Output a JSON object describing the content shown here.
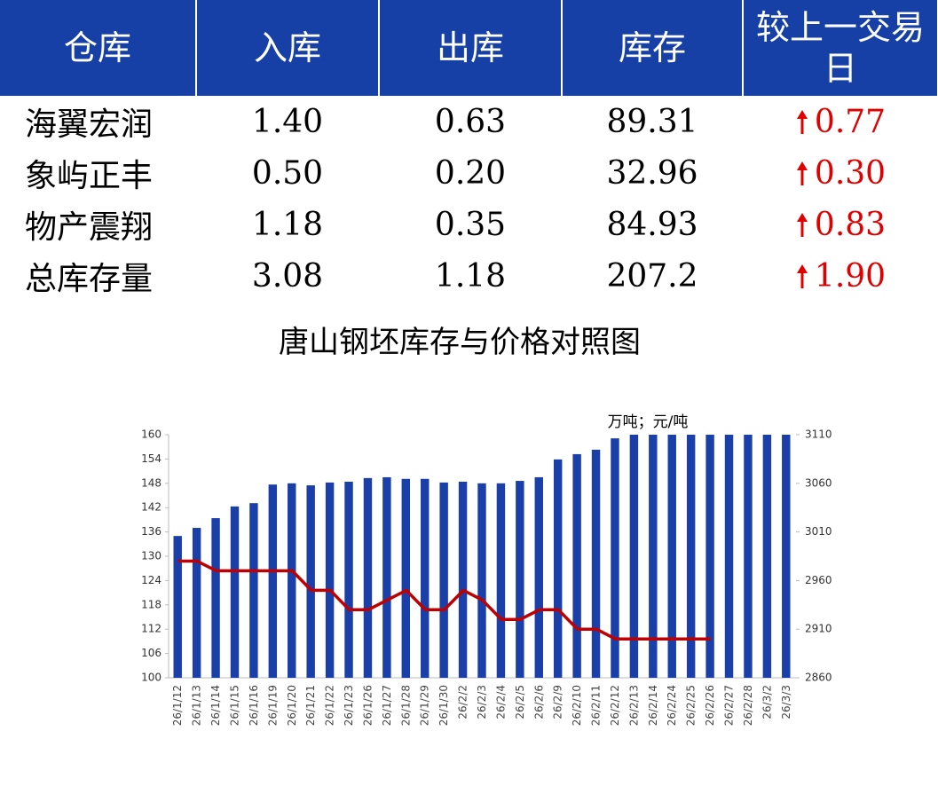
{
  "table": {
    "headers": [
      "仓库",
      "入库",
      "出库",
      "库存",
      "较上一交易日"
    ],
    "rows": [
      [
        "海翼宏润",
        "1.40",
        "0.63",
        "89.31",
        "0.77"
      ],
      [
        "象屿正丰",
        "0.50",
        "0.20",
        "32.96",
        "0.30"
      ],
      [
        "物产震翔",
        "1.18",
        "0.35",
        "84.93",
        "0.83"
      ],
      [
        "总库存量",
        "3.08",
        "1.18",
        "207.2",
        "1.90"
      ]
    ]
  },
  "chart_data": {
    "type": "bar",
    "title": "唐山钢坯库存与价格对照图",
    "unit_label": "万吨；元/吨",
    "categories": [
      "26/1/12",
      "26/1/13",
      "26/1/14",
      "26/1/15",
      "26/1/16",
      "26/1/19",
      "26/1/20",
      "26/1/21",
      "26/1/22",
      "26/1/23",
      "26/1/26",
      "26/1/27",
      "26/1/28",
      "26/1/29",
      "26/1/30",
      "26/2/2",
      "26/2/3",
      "26/2/4",
      "26/2/5",
      "26/2/6",
      "26/2/9",
      "26/2/10",
      "26/2/11",
      "26/2/12",
      "26/2/13",
      "26/2/14",
      "26/2/24",
      "26/2/25",
      "26/2/26",
      "26/2/27",
      "26/2/28",
      "26/3/2",
      "26/3/3"
    ],
    "series": [
      {
        "type": "bar",
        "color": "#1a3fa8",
        "values": [
          135.0,
          137.0,
          139.4,
          142.3,
          143.1,
          147.7,
          148.0,
          147.5,
          148.2,
          148.4,
          149.3,
          149.5,
          149.1,
          149.1,
          148.2,
          148.4,
          148.0,
          148.0,
          148.6,
          149.5,
          153.9,
          155.2,
          156.3,
          159.1,
          160,
          160,
          160,
          160,
          160,
          160,
          160,
          160,
          160
        ]
      },
      {
        "type": "line",
        "axis": "y2",
        "color": "#c00000",
        "values": [
          2980,
          2980,
          2970,
          2970,
          2970,
          2970,
          2970,
          2950,
          2950,
          2930,
          2930,
          2940,
          2950,
          2930,
          2930,
          2950,
          2940,
          2920,
          2920,
          2930,
          2930,
          2910,
          2910,
          2900,
          2900,
          2900,
          2900,
          2900,
          2900,
          null,
          null,
          null,
          null
        ]
      }
    ],
    "ylim": [
      100,
      160
    ],
    "yticks": [
      100,
      106,
      112,
      118,
      124,
      130,
      136,
      142,
      148,
      154,
      160
    ],
    "y2lim": [
      2860,
      3110
    ],
    "y2ticks": [
      2860,
      2910,
      2960,
      3010,
      3060,
      3110
    ]
  }
}
